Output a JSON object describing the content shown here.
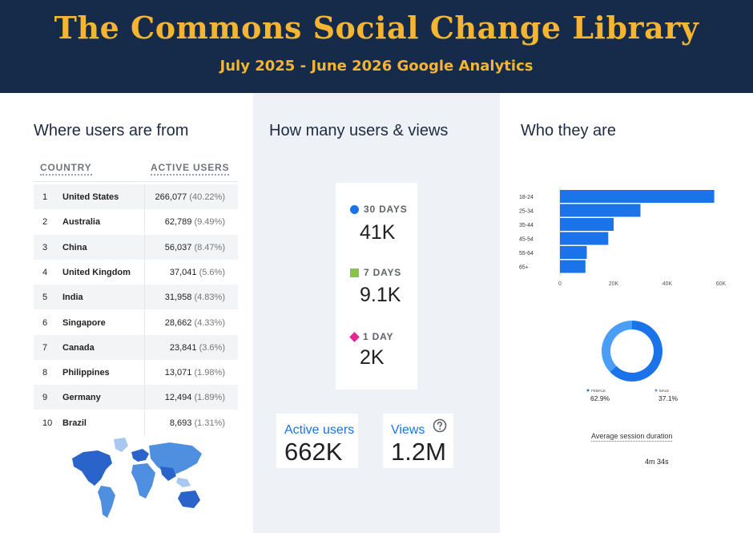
{
  "header": {
    "title": "The Commons Social Change Library",
    "subtitle": "July 2025 - June 2026 Google Analytics"
  },
  "sections": {
    "where": "Where users are from",
    "how": "How many users & views",
    "who": "Who they are"
  },
  "country_table": {
    "headers": [
      "COUNTRY",
      "ACTIVE USERS"
    ],
    "rows": [
      {
        "rank": "1",
        "country": "United States",
        "users": "266,077",
        "pct": "(40.22%)"
      },
      {
        "rank": "2",
        "country": "Australia",
        "users": "62,789",
        "pct": "(9.49%)"
      },
      {
        "rank": "3",
        "country": "China",
        "users": "56,037",
        "pct": "(8.47%)"
      },
      {
        "rank": "4",
        "country": "United Kingdom",
        "users": "37,041",
        "pct": "(5.6%)"
      },
      {
        "rank": "5",
        "country": "India",
        "users": "31,958",
        "pct": "(4.83%)"
      },
      {
        "rank": "6",
        "country": "Singapore",
        "users": "28,662",
        "pct": "(4.33%)"
      },
      {
        "rank": "7",
        "country": "Canada",
        "users": "23,841",
        "pct": "(3.6%)"
      },
      {
        "rank": "8",
        "country": "Philippines",
        "users": "13,071",
        "pct": "(1.98%)"
      },
      {
        "rank": "9",
        "country": "Germany",
        "users": "12,494",
        "pct": "(1.89%)"
      },
      {
        "rank": "10",
        "country": "Brazil",
        "users": "8,693",
        "pct": "(1.31%)"
      }
    ]
  },
  "kpis": {
    "days30": {
      "label": "30 DAYS",
      "value": "41K",
      "color": "#1a73e8",
      "marker": "circle"
    },
    "days7": {
      "label": "7 DAYS",
      "value": "9.1K",
      "color": "#8bc34a",
      "marker": "square"
    },
    "day1": {
      "label": "1 DAY",
      "value": "2K",
      "color": "#e52592",
      "marker": "diamond"
    }
  },
  "totals": {
    "active_users": {
      "label": "Active users",
      "value": "662K"
    },
    "views": {
      "label": "Views",
      "value": "1.2M",
      "icon": "help-circle-icon"
    }
  },
  "chart_data": [
    {
      "type": "bar",
      "orientation": "horizontal",
      "categories": [
        "18-24",
        "25-34",
        "35-44",
        "45-54",
        "55-64",
        "65+"
      ],
      "values": [
        57500,
        30000,
        20000,
        18000,
        10000,
        9500
      ],
      "x_ticks": [
        "0",
        "20K",
        "40K",
        "60K"
      ],
      "xlim": [
        0,
        60000
      ],
      "color": "#1a73e8"
    },
    {
      "type": "pie",
      "style": "donut",
      "slices": [
        {
          "name": "FEMALE",
          "value": 62.9,
          "label": "62.9%",
          "color": "#1a73e8"
        },
        {
          "name": "MALE",
          "value": 37.1,
          "label": "37.1%",
          "color": "#4a9ef5"
        }
      ]
    }
  ],
  "session": {
    "label": "Average session duration",
    "value": "4m 34s"
  },
  "map": {
    "colors": {
      "dark": "#2a63c9",
      "mid": "#4f8fe0",
      "light": "#a9c7f0"
    }
  }
}
